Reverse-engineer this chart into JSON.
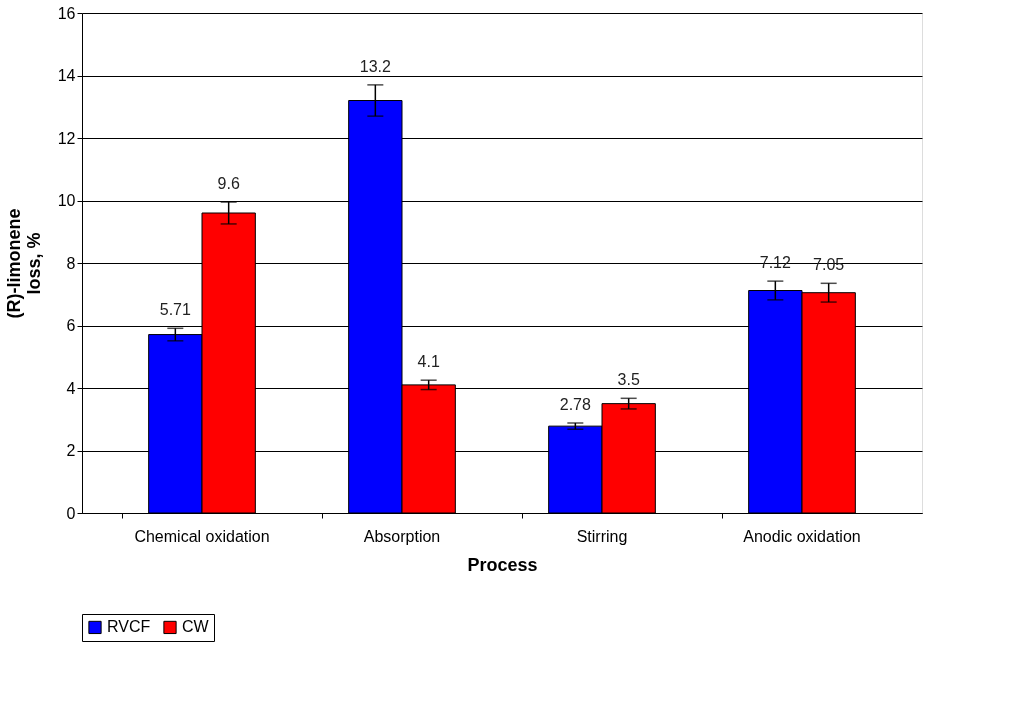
{
  "chart_data": {
    "type": "bar",
    "xlabel": "Process",
    "ylabel": [
      "(R)-limonene",
      "loss, %"
    ],
    "categories": [
      "Chemical oxidation",
      "Absorption",
      "Stirring",
      "Anodic oxidation"
    ],
    "series": [
      {
        "name": "RVCF",
        "color": "#0000ff",
        "values": [
          5.71,
          13.2,
          2.78,
          7.12
        ],
        "errors": [
          0.2,
          0.5,
          0.1,
          0.3
        ]
      },
      {
        "name": "CW",
        "color": "#ff0000",
        "values": [
          9.6,
          4.1,
          3.5,
          7.05
        ],
        "errors": [
          0.35,
          0.15,
          0.17,
          0.3
        ]
      }
    ],
    "ylim": [
      0,
      16
    ],
    "yticks": [
      0,
      2,
      4,
      6,
      8,
      10,
      12,
      14,
      16
    ],
    "grid": "y",
    "legend": "bottom",
    "data_labels": true
  }
}
